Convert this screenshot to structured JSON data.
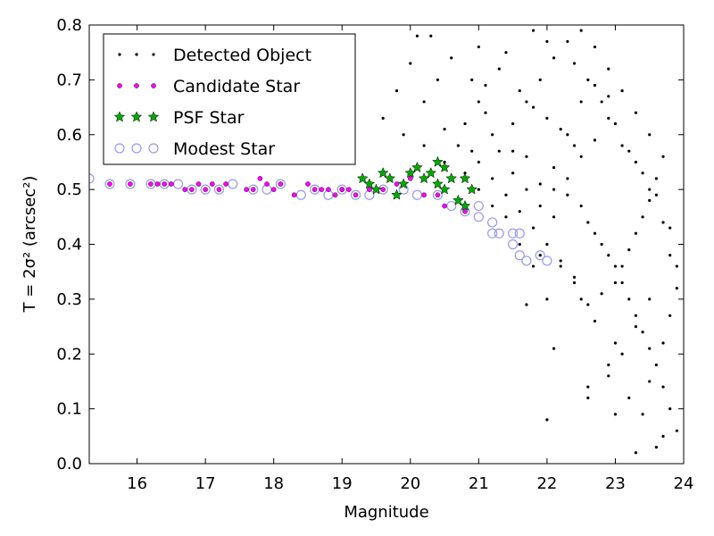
{
  "chart_data": {
    "type": "scatter",
    "xlabel": "Magnitude",
    "ylabel": "T = 2σ² (arcsec²)",
    "xlim": [
      15.3,
      24.0
    ],
    "ylim": [
      0.0,
      0.8
    ],
    "xticks": [
      16,
      17,
      18,
      19,
      20,
      21,
      22,
      23,
      24
    ],
    "xtick_labels": [
      "16",
      "17",
      "18",
      "19",
      "20",
      "21",
      "22",
      "23",
      "24"
    ],
    "yticks": [
      0.0,
      0.1,
      0.2,
      0.3,
      0.4,
      0.5,
      0.6,
      0.7,
      0.8
    ],
    "ytick_labels": [
      "0.0",
      "0.1",
      "0.2",
      "0.3",
      "0.4",
      "0.5",
      "0.6",
      "0.7",
      "0.8"
    ],
    "grid": false,
    "legend_position": "top-left",
    "series": [
      {
        "name": "Detected Object",
        "marker": "dot",
        "color": "#000000",
        "points": [
          [
            20.3,
            0.78
          ],
          [
            20.6,
            0.74
          ],
          [
            20.9,
            0.7
          ],
          [
            21.0,
            0.66
          ],
          [
            20.8,
            0.62
          ],
          [
            21.2,
            0.6
          ],
          [
            21.5,
            0.57
          ],
          [
            21.7,
            0.56
          ],
          [
            20.7,
            0.58
          ],
          [
            20.5,
            0.61
          ],
          [
            21.0,
            0.76
          ],
          [
            21.3,
            0.72
          ],
          [
            21.6,
            0.68
          ],
          [
            21.8,
            0.65
          ],
          [
            22.0,
            0.63
          ],
          [
            22.2,
            0.61
          ],
          [
            22.4,
            0.58
          ],
          [
            22.1,
            0.54
          ],
          [
            21.9,
            0.51
          ],
          [
            22.3,
            0.49
          ],
          [
            22.5,
            0.47
          ],
          [
            22.6,
            0.44
          ],
          [
            22.7,
            0.42
          ],
          [
            22.8,
            0.4
          ],
          [
            22.9,
            0.38
          ],
          [
            23.0,
            0.36
          ],
          [
            23.1,
            0.33
          ],
          [
            23.2,
            0.3
          ],
          [
            23.3,
            0.27
          ],
          [
            23.4,
            0.24
          ],
          [
            23.5,
            0.21
          ],
          [
            23.6,
            0.18
          ],
          [
            23.7,
            0.14
          ],
          [
            23.8,
            0.1
          ],
          [
            23.9,
            0.06
          ],
          [
            23.6,
            0.03
          ],
          [
            23.3,
            0.02
          ],
          [
            23.7,
            0.05
          ],
          [
            23.4,
            0.09
          ],
          [
            23.2,
            0.12
          ],
          [
            22.6,
            0.14
          ],
          [
            22.9,
            0.18
          ],
          [
            23.0,
            0.22
          ],
          [
            22.7,
            0.26
          ],
          [
            22.5,
            0.3
          ],
          [
            22.4,
            0.34
          ],
          [
            22.2,
            0.37
          ],
          [
            22.0,
            0.4
          ],
          [
            21.8,
            0.43
          ],
          [
            21.6,
            0.46
          ],
          [
            21.4,
            0.49
          ],
          [
            21.2,
            0.52
          ],
          [
            21.0,
            0.55
          ],
          [
            20.9,
            0.57
          ],
          [
            21.5,
            0.62
          ],
          [
            21.7,
            0.66
          ],
          [
            21.9,
            0.7
          ],
          [
            22.1,
            0.74
          ],
          [
            22.3,
            0.77
          ],
          [
            22.5,
            0.79
          ],
          [
            22.7,
            0.76
          ],
          [
            22.9,
            0.72
          ],
          [
            23.1,
            0.68
          ],
          [
            23.3,
            0.64
          ],
          [
            23.5,
            0.6
          ],
          [
            23.7,
            0.56
          ],
          [
            23.6,
            0.52
          ],
          [
            23.5,
            0.48
          ],
          [
            23.4,
            0.45
          ],
          [
            23.3,
            0.42
          ],
          [
            23.2,
            0.39
          ],
          [
            23.1,
            0.36
          ],
          [
            23.0,
            0.33
          ],
          [
            22.8,
            0.31
          ],
          [
            22.6,
            0.29
          ],
          [
            22.4,
            0.33
          ],
          [
            22.2,
            0.36
          ],
          [
            22.1,
            0.45
          ],
          [
            22.3,
            0.52
          ],
          [
            22.5,
            0.56
          ],
          [
            22.7,
            0.59
          ],
          [
            22.9,
            0.63
          ],
          [
            23.1,
            0.58
          ],
          [
            23.3,
            0.55
          ],
          [
            23.5,
            0.5
          ],
          [
            23.7,
            0.44
          ],
          [
            23.8,
            0.38
          ],
          [
            23.9,
            0.32
          ],
          [
            23.8,
            0.27
          ],
          [
            23.7,
            0.22
          ],
          [
            21.1,
            0.64
          ],
          [
            21.3,
            0.57
          ],
          [
            21.5,
            0.53
          ],
          [
            21.7,
            0.5
          ],
          [
            21.9,
            0.47
          ],
          [
            22.1,
            0.5
          ],
          [
            22.3,
            0.6
          ],
          [
            22.5,
            0.66
          ],
          [
            22.7,
            0.69
          ],
          [
            22.9,
            0.67
          ],
          [
            20.4,
            0.7
          ],
          [
            20.2,
            0.66
          ],
          [
            20.0,
            0.73
          ],
          [
            19.8,
            0.68
          ],
          [
            20.1,
            0.78
          ],
          [
            19.6,
            0.63
          ],
          [
            19.9,
            0.6
          ],
          [
            20.2,
            0.58
          ],
          [
            20.5,
            0.55
          ],
          [
            20.8,
            0.53
          ],
          [
            21.0,
            0.5
          ],
          [
            21.2,
            0.47
          ],
          [
            21.4,
            0.45
          ],
          [
            21.6,
            0.4
          ],
          [
            21.8,
            0.36
          ],
          [
            22.0,
            0.3
          ],
          [
            22.1,
            0.21
          ],
          [
            21.7,
            0.29
          ],
          [
            22.0,
            0.08
          ],
          [
            21.9,
            0.38
          ],
          [
            21.1,
            0.69
          ],
          [
            21.4,
            0.75
          ],
          [
            21.8,
            0.79
          ],
          [
            22.0,
            0.77
          ],
          [
            22.4,
            0.73
          ],
          [
            22.6,
            0.7
          ],
          [
            22.8,
            0.66
          ],
          [
            23.0,
            0.62
          ],
          [
            23.2,
            0.57
          ],
          [
            23.4,
            0.53
          ],
          [
            23.6,
            0.49
          ],
          [
            23.8,
            0.43
          ],
          [
            23.9,
            0.36
          ],
          [
            23.5,
            0.3
          ],
          [
            23.3,
            0.25
          ],
          [
            23.1,
            0.2
          ],
          [
            22.9,
            0.16
          ],
          [
            22.6,
            0.12
          ],
          [
            23.0,
            0.09
          ],
          [
            23.5,
            0.15
          ]
        ]
      },
      {
        "name": "Candidate Star",
        "marker": "circle",
        "color": "#ff00ff",
        "points": [
          [
            15.6,
            0.51
          ],
          [
            15.9,
            0.51
          ],
          [
            16.2,
            0.51
          ],
          [
            16.3,
            0.51
          ],
          [
            16.4,
            0.51
          ],
          [
            16.5,
            0.51
          ],
          [
            16.7,
            0.5
          ],
          [
            16.8,
            0.5
          ],
          [
            16.9,
            0.51
          ],
          [
            17.0,
            0.5
          ],
          [
            17.1,
            0.51
          ],
          [
            17.2,
            0.5
          ],
          [
            17.3,
            0.51
          ],
          [
            17.6,
            0.5
          ],
          [
            17.7,
            0.5
          ],
          [
            17.8,
            0.52
          ],
          [
            17.9,
            0.51
          ],
          [
            18.0,
            0.5
          ],
          [
            18.1,
            0.51
          ],
          [
            18.3,
            0.49
          ],
          [
            18.5,
            0.51
          ],
          [
            18.6,
            0.5
          ],
          [
            18.7,
            0.5
          ],
          [
            18.8,
            0.5
          ],
          [
            18.9,
            0.49
          ],
          [
            19.0,
            0.5
          ],
          [
            19.1,
            0.5
          ],
          [
            19.2,
            0.49
          ],
          [
            19.4,
            0.5
          ],
          [
            19.6,
            0.5
          ],
          [
            19.8,
            0.51
          ],
          [
            20.0,
            0.52
          ],
          [
            20.2,
            0.49
          ],
          [
            20.4,
            0.49
          ],
          [
            20.5,
            0.47
          ],
          [
            20.7,
            0.48
          ],
          [
            20.8,
            0.46
          ],
          [
            19.0,
            0.5
          ]
        ]
      },
      {
        "name": "PSF Star",
        "marker": "star",
        "color": "#00aa00",
        "points": [
          [
            19.3,
            0.52
          ],
          [
            19.4,
            0.51
          ],
          [
            19.5,
            0.5
          ],
          [
            19.6,
            0.53
          ],
          [
            19.7,
            0.52
          ],
          [
            19.8,
            0.49
          ],
          [
            19.9,
            0.51
          ],
          [
            20.0,
            0.53
          ],
          [
            20.1,
            0.54
          ],
          [
            20.2,
            0.52
          ],
          [
            20.3,
            0.53
          ],
          [
            20.4,
            0.55
          ],
          [
            20.4,
            0.51
          ],
          [
            20.5,
            0.54
          ],
          [
            20.5,
            0.5
          ],
          [
            20.6,
            0.52
          ],
          [
            20.7,
            0.48
          ],
          [
            20.8,
            0.47
          ],
          [
            20.8,
            0.52
          ],
          [
            20.9,
            0.5
          ]
        ]
      },
      {
        "name": "Modest Star",
        "marker": "open-circle",
        "color": "#9999ee",
        "points": [
          [
            15.3,
            0.52
          ],
          [
            15.6,
            0.51
          ],
          [
            15.9,
            0.51
          ],
          [
            16.2,
            0.51
          ],
          [
            16.4,
            0.51
          ],
          [
            16.6,
            0.51
          ],
          [
            16.8,
            0.5
          ],
          [
            17.0,
            0.5
          ],
          [
            17.2,
            0.5
          ],
          [
            17.4,
            0.51
          ],
          [
            17.7,
            0.5
          ],
          [
            17.9,
            0.5
          ],
          [
            18.1,
            0.51
          ],
          [
            18.4,
            0.49
          ],
          [
            18.6,
            0.5
          ],
          [
            18.8,
            0.49
          ],
          [
            19.0,
            0.5
          ],
          [
            19.2,
            0.49
          ],
          [
            19.4,
            0.49
          ],
          [
            19.6,
            0.5
          ],
          [
            19.9,
            0.5
          ],
          [
            20.1,
            0.49
          ],
          [
            20.4,
            0.49
          ],
          [
            20.6,
            0.47
          ],
          [
            20.8,
            0.46
          ],
          [
            21.0,
            0.45
          ],
          [
            21.0,
            0.47
          ],
          [
            21.2,
            0.44
          ],
          [
            21.2,
            0.42
          ],
          [
            21.3,
            0.42
          ],
          [
            21.5,
            0.42
          ],
          [
            21.6,
            0.42
          ],
          [
            21.5,
            0.4
          ],
          [
            21.6,
            0.38
          ],
          [
            21.9,
            0.38
          ],
          [
            22.0,
            0.37
          ],
          [
            21.7,
            0.37
          ]
        ]
      }
    ]
  }
}
